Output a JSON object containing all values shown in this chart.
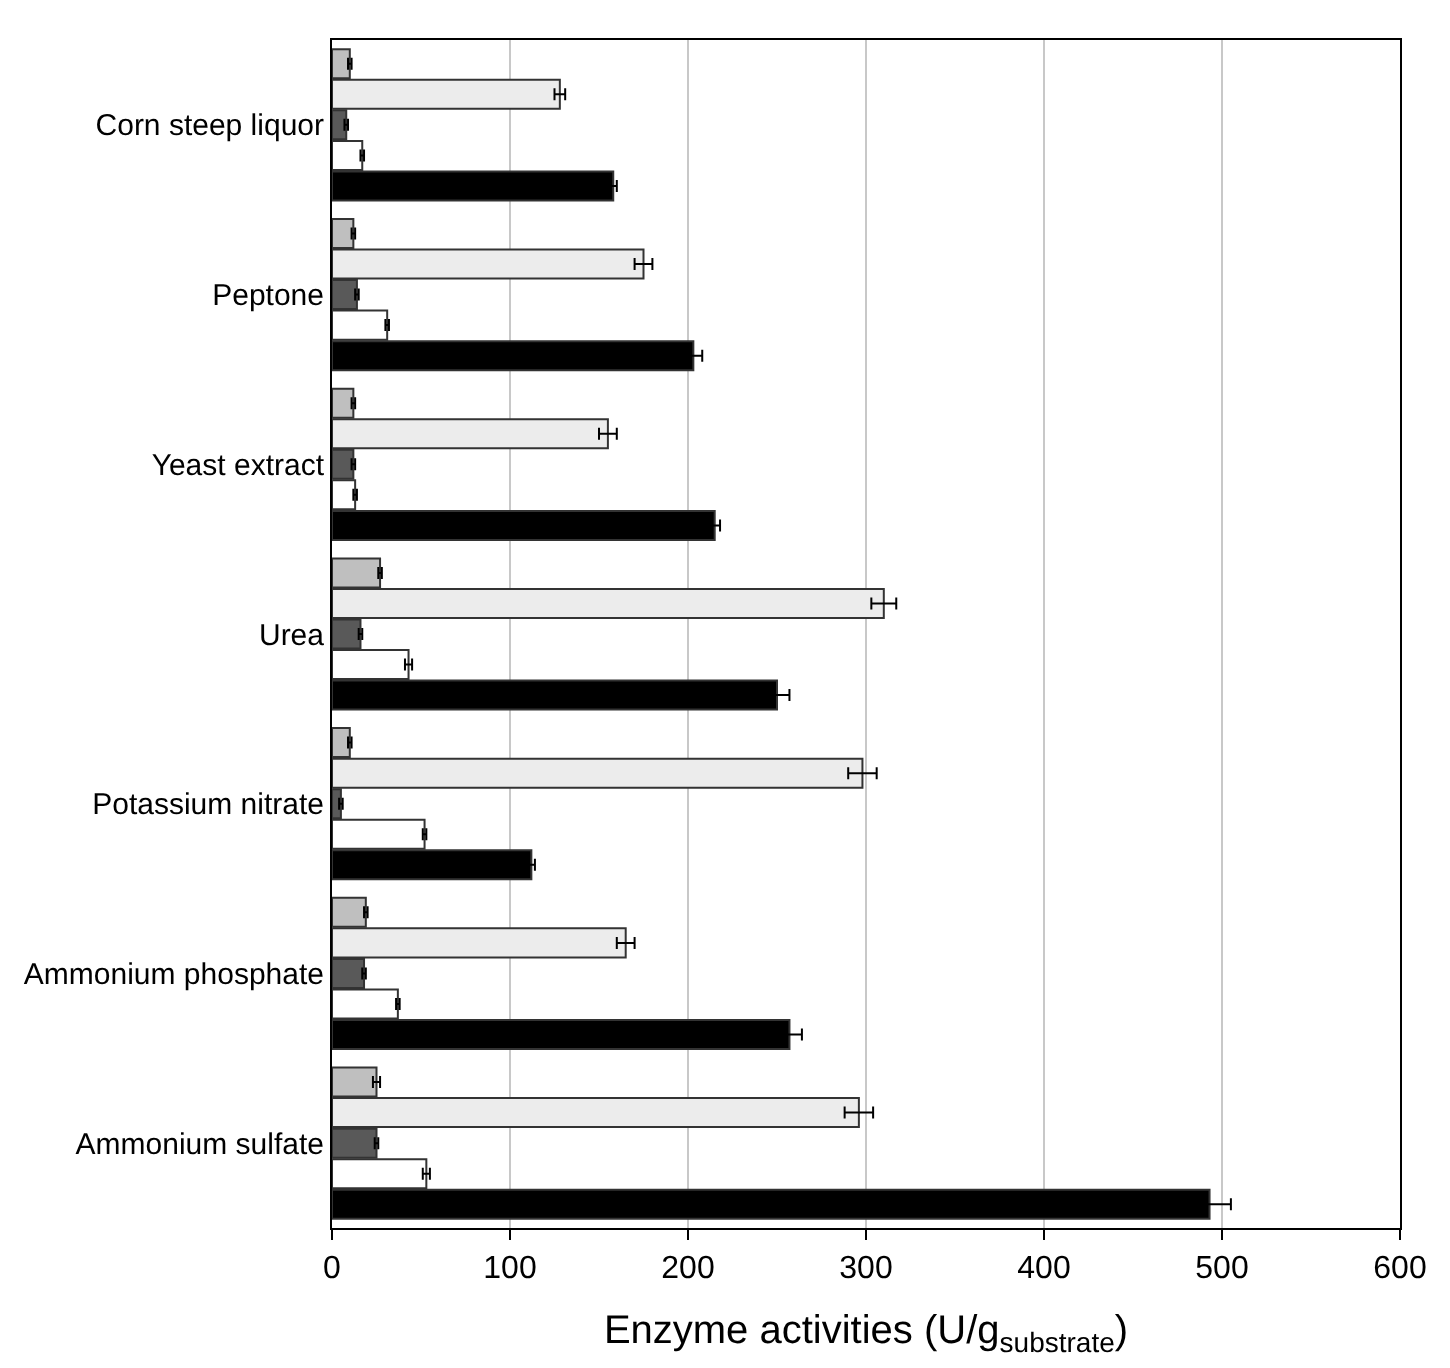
{
  "chart_data": {
    "type": "bar",
    "orientation": "horizontal",
    "xlabel": "Enzyme activities (U/g$_{substrate}$)",
    "categories": [
      "Corn steep liquor",
      "Peptone",
      "Yeast extract",
      "Urea",
      "Potassium nitrate",
      "Ammonium phosphate",
      "Ammonium sulfate"
    ],
    "series": [
      {
        "color": "#bfbfbf",
        "values": [
          10,
          12,
          12,
          27,
          10,
          19,
          25
        ],
        "errors": [
          1,
          1,
          1,
          1,
          1,
          1,
          2
        ]
      },
      {
        "color": "#ececec",
        "values": [
          128,
          175,
          155,
          310,
          298,
          165,
          296
        ],
        "errors": [
          3,
          5,
          5,
          7,
          8,
          5,
          8
        ]
      },
      {
        "color": "#595959",
        "values": [
          8,
          14,
          12,
          16,
          5,
          18,
          25
        ],
        "errors": [
          1,
          1,
          1,
          1,
          1,
          1,
          1
        ]
      },
      {
        "color": "#ffffff",
        "values": [
          17,
          31,
          13,
          43,
          52,
          37,
          53
        ],
        "errors": [
          1,
          1,
          1,
          2,
          1,
          1,
          2
        ]
      },
      {
        "color": "#000000",
        "values": [
          158,
          203,
          215,
          250,
          112,
          257,
          493
        ],
        "errors": [
          2,
          5,
          3,
          7,
          2,
          7,
          12
        ]
      }
    ],
    "xlim": [
      0,
      600
    ],
    "xticks": [
      0,
      100,
      200,
      300,
      400,
      500,
      600
    ],
    "grid": "x"
  }
}
